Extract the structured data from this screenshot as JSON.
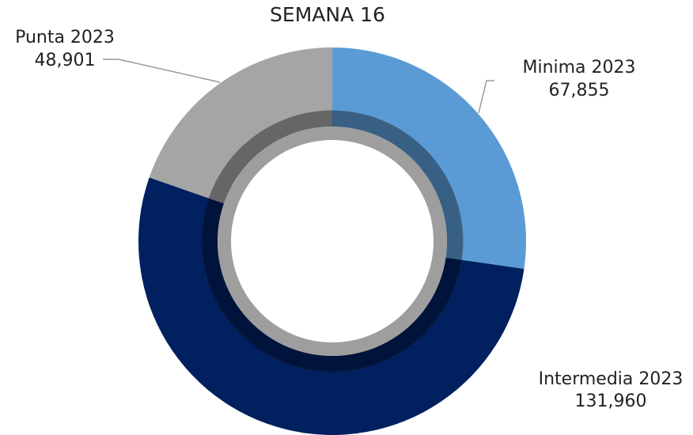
{
  "chart_data": {
    "type": "donut",
    "title": "SEMANA 16",
    "categories": [
      "Minima 2023",
      "Intermedia 2023",
      "Punta 2023"
    ],
    "values": [
      67855,
      131960,
      48901
    ],
    "value_labels": [
      "67,855",
      "131,960",
      "48,901"
    ],
    "colors": [
      "#5b9bd5",
      "#002060",
      "#a5a5a5"
    ]
  }
}
